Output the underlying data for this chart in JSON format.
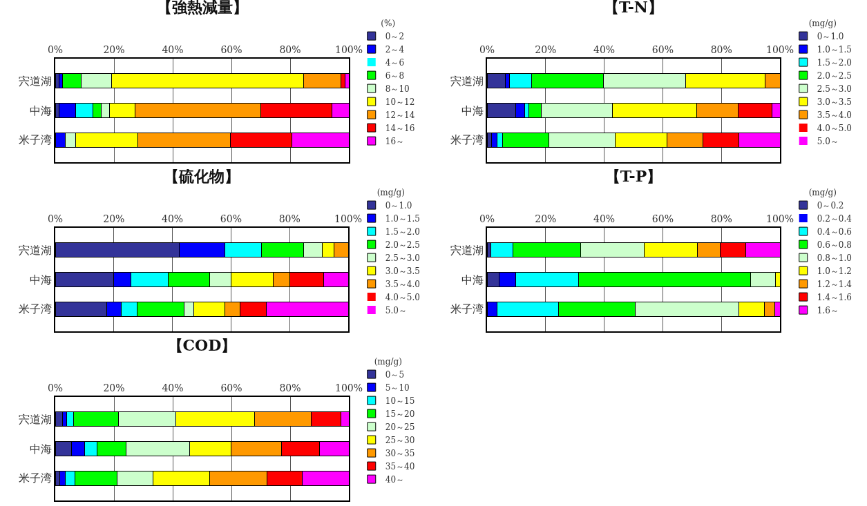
{
  "chart_data": [
    {
      "type": "bar",
      "title": "【強熱減量】",
      "legend_title": "(%)",
      "orientation": "horizontal",
      "stacked": true,
      "grid": "x",
      "legend": "right",
      "xlim": [
        0,
        100
      ],
      "xticks": [
        {
          "value": 0,
          "label": "0%"
        },
        {
          "value": 20,
          "label": "20%"
        },
        {
          "value": 40,
          "label": "40%"
        },
        {
          "value": 60,
          "label": "60%"
        },
        {
          "value": 80,
          "label": "80%"
        },
        {
          "value": 100,
          "label": "100%"
        }
      ],
      "categories": [
        "宍道湖",
        "中海",
        "米子湾"
      ],
      "series": [
        {
          "name": "0～2",
          "color": "#333399",
          "values": [
            1.2,
            1.2,
            0
          ]
        },
        {
          "name": "2～4",
          "color": "#0000ff",
          "values": [
            1.3,
            5.8,
            3.5
          ]
        },
        {
          "name": "4～6",
          "color": "#00ffff",
          "values": [
            0,
            5.8,
            0
          ]
        },
        {
          "name": "6～8",
          "color": "#00ff00",
          "values": [
            6.3,
            2.9,
            0
          ]
        },
        {
          "name": "8～10",
          "color": "#ccffcc",
          "values": [
            10.4,
            2.8,
            3.4
          ]
        },
        {
          "name": "10～12",
          "color": "#ffff00",
          "values": [
            65.4,
            8.6,
            21.1
          ]
        },
        {
          "name": "12～14",
          "color": "#ff9900",
          "values": [
            12.8,
            42.9,
            31.6
          ]
        },
        {
          "name": "14～16",
          "color": "#ff0000",
          "values": [
            1.3,
            24.3,
            21.1
          ]
        },
        {
          "name": "16～",
          "color": "#ff00ff",
          "values": [
            1.3,
            5.7,
            19.3
          ]
        }
      ]
    },
    {
      "type": "bar",
      "title": "【T-N】",
      "legend_title": "(mg/g)",
      "orientation": "horizontal",
      "stacked": true,
      "grid": "x",
      "legend": "right",
      "xlim": [
        0,
        100
      ],
      "xticks": [
        {
          "value": 0,
          "label": "0%"
        },
        {
          "value": 20,
          "label": "20%"
        },
        {
          "value": 40,
          "label": "40%"
        },
        {
          "value": 60,
          "label": "60%"
        },
        {
          "value": 80,
          "label": "80%"
        },
        {
          "value": 100,
          "label": "100%"
        }
      ],
      "categories": [
        "宍道湖",
        "中海",
        "米子湾"
      ],
      "series": [
        {
          "name": "0～1.0",
          "color": "#333399",
          "values": [
            6.3,
            9.9,
            1.6
          ]
        },
        {
          "name": "1.0～1.5",
          "color": "#0000ff",
          "values": [
            1.3,
            2.9,
            1.9
          ]
        },
        {
          "name": "1.5～2.0",
          "color": "#00ffff",
          "values": [
            7.7,
            1.4,
            1.7
          ]
        },
        {
          "name": "2.0～2.5",
          "color": "#00ff00",
          "values": [
            24.4,
            4.3,
            15.8
          ]
        },
        {
          "name": "2.5～3.0",
          "color": "#ccffcc",
          "values": [
            28.2,
            24.2,
            22.8
          ]
        },
        {
          "name": "3.0～3.5",
          "color": "#ffff00",
          "values": [
            27.1,
            28.8,
            17.6
          ]
        },
        {
          "name": "3.5～4.0",
          "color": "#ff9900",
          "values": [
            5.0,
            14.3,
            12.3
          ]
        },
        {
          "name": "4.0～5.0",
          "color": "#ff0000",
          "values": [
            0,
            11.5,
            12.3
          ]
        },
        {
          "name": "5.0～",
          "color": "#ff00ff",
          "values": [
            0,
            2.7,
            14.0
          ]
        }
      ]
    },
    {
      "type": "bar",
      "title": "【硫化物】",
      "legend_title": "(mg/g)",
      "orientation": "horizontal",
      "stacked": true,
      "grid": "x",
      "legend": "right",
      "xlim": [
        0,
        100
      ],
      "xticks": [
        {
          "value": 0,
          "label": "0%"
        },
        {
          "value": 20,
          "label": "20%"
        },
        {
          "value": 40,
          "label": "40%"
        },
        {
          "value": 60,
          "label": "60%"
        },
        {
          "value": 80,
          "label": "80%"
        },
        {
          "value": 100,
          "label": "100%"
        }
      ],
      "categories": [
        "宍道湖",
        "中海",
        "米子湾"
      ],
      "series": [
        {
          "name": "0～1.0",
          "color": "#333399",
          "values": [
            42.3,
            19.9,
            17.5
          ]
        },
        {
          "name": "1.0～1.5",
          "color": "#0000ff",
          "values": [
            15.5,
            5.9,
            5.1
          ]
        },
        {
          "name": "1.5～2.0",
          "color": "#00ffff",
          "values": [
            12.7,
            12.8,
            5.4
          ]
        },
        {
          "name": "2.0～2.5",
          "color": "#00ff00",
          "values": [
            14.2,
            14.2,
            15.9
          ]
        },
        {
          "name": "2.5～3.0",
          "color": "#ccffcc",
          "values": [
            6.5,
            7.3,
            3.5
          ]
        },
        {
          "name": "3.0～3.5",
          "color": "#ffff00",
          "values": [
            3.9,
            14.3,
            10.4
          ]
        },
        {
          "name": "3.5～4.0",
          "color": "#ff9900",
          "values": [
            4.9,
            5.6,
            5.4
          ]
        },
        {
          "name": "4.0～5.0",
          "color": "#ff0000",
          "values": [
            0,
            11.6,
            8.8
          ]
        },
        {
          "name": "5.0～",
          "color": "#ff00ff",
          "values": [
            0,
            8.4,
            28.0
          ]
        }
      ]
    },
    {
      "type": "bar",
      "title": "【T-P】",
      "legend_title": "(mg/g)",
      "orientation": "horizontal",
      "stacked": true,
      "grid": "x",
      "legend": "right",
      "xlim": [
        0,
        100
      ],
      "xticks": [
        {
          "value": 0,
          "label": "0%"
        },
        {
          "value": 20,
          "label": "20%"
        },
        {
          "value": 40,
          "label": "40%"
        },
        {
          "value": 60,
          "label": "60%"
        },
        {
          "value": 80,
          "label": "80%"
        },
        {
          "value": 100,
          "label": "100%"
        }
      ],
      "categories": [
        "宍道湖",
        "中海",
        "米子湾"
      ],
      "series": [
        {
          "name": "0～0.2",
          "color": "#333399",
          "values": [
            1.2,
            4.2,
            0
          ]
        },
        {
          "name": "0.2～0.4",
          "color": "#0000ff",
          "values": [
            0,
            5.7,
            3.5
          ]
        },
        {
          "name": "0.4～0.6",
          "color": "#00ffff",
          "values": [
            7.7,
            21.4,
            21.0
          ]
        },
        {
          "name": "0.6～0.8",
          "color": "#00ff00",
          "values": [
            23.1,
            58.7,
            26.2
          ]
        },
        {
          "name": "0.8～1.0",
          "color": "#ccffcc",
          "values": [
            21.7,
            8.5,
            35.3
          ]
        },
        {
          "name": "1.0～1.2",
          "color": "#ffff00",
          "values": [
            18.1,
            1.5,
            8.8
          ]
        },
        {
          "name": "1.2～1.4",
          "color": "#ff9900",
          "values": [
            7.7,
            0,
            3.4
          ]
        },
        {
          "name": "1.4～1.6",
          "color": "#ff0000",
          "values": [
            8.9,
            0,
            0
          ]
        },
        {
          "name": "1.6～",
          "color": "#ff00ff",
          "values": [
            11.6,
            0,
            1.8
          ]
        }
      ]
    },
    {
      "type": "bar",
      "title": "【COD】",
      "legend_title": "(mg/g)",
      "orientation": "horizontal",
      "stacked": true,
      "grid": "x",
      "legend": "right",
      "xlim": [
        0,
        100
      ],
      "xticks": [
        {
          "value": 0,
          "label": "0%"
        },
        {
          "value": 20,
          "label": "20%"
        },
        {
          "value": 40,
          "label": "40%"
        },
        {
          "value": 60,
          "label": "60%"
        },
        {
          "value": 80,
          "label": "80%"
        },
        {
          "value": 100,
          "label": "100%"
        }
      ],
      "categories": [
        "宍道湖",
        "中海",
        "米子湾"
      ],
      "series": [
        {
          "name": "0～5",
          "color": "#333399",
          "values": [
            2.5,
            5.6,
            1.6
          ]
        },
        {
          "name": "5～10",
          "color": "#0000ff",
          "values": [
            1.3,
            4.4,
            1.9
          ]
        },
        {
          "name": "10～15",
          "color": "#00ffff",
          "values": [
            2.5,
            4.2,
            3.3
          ]
        },
        {
          "name": "15～20",
          "color": "#00ff00",
          "values": [
            15.3,
            10.0,
            14.2
          ]
        },
        {
          "name": "20～25",
          "color": "#ccffcc",
          "values": [
            19.4,
            21.5,
            12.3
          ]
        },
        {
          "name": "25～30",
          "color": "#ffff00",
          "values": [
            26.8,
            14.2,
            19.2
          ]
        },
        {
          "name": "30～35",
          "color": "#ff9900",
          "values": [
            19.3,
            17.2,
            19.5
          ]
        },
        {
          "name": "35～40",
          "color": "#ff0000",
          "values": [
            10.2,
            12.8,
            12.1
          ]
        },
        {
          "name": "40～",
          "color": "#ff00ff",
          "values": [
            2.7,
            10.1,
            15.9
          ]
        }
      ]
    }
  ]
}
